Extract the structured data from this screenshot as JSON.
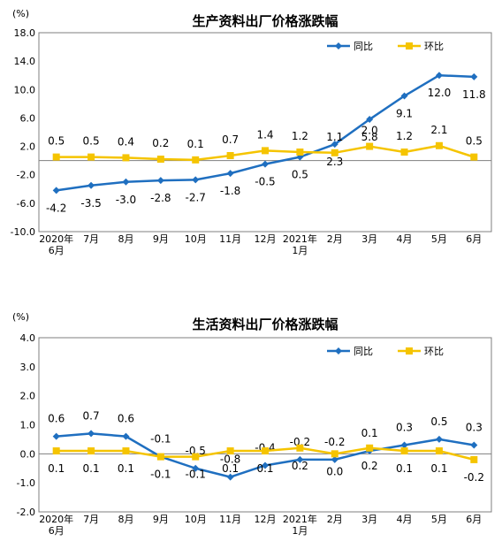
{
  "colors": {
    "yoy": "#1F6FC0",
    "mom": "#F5C400",
    "frame": "#7F7F7F",
    "grid": "#BFBFBF"
  },
  "chart_data": [
    {
      "type": "line",
      "title": "生产资料出厂价格涨跌幅",
      "unit_label": "(%)",
      "ylim": [
        -10.0,
        18.0
      ],
      "yticks": [
        "18.0",
        "14.0",
        "10.0",
        "6.0",
        "2.0",
        "-2.0",
        "-6.0",
        "-10.0"
      ],
      "categories": [
        [
          "2020年",
          "6月"
        ],
        [
          "7月"
        ],
        [
          "8月"
        ],
        [
          "9月"
        ],
        [
          "10月"
        ],
        [
          "11月"
        ],
        [
          "12月"
        ],
        [
          "2021年",
          "1月"
        ],
        [
          "2月"
        ],
        [
          "3月"
        ],
        [
          "4月"
        ],
        [
          "5月"
        ],
        [
          "6月"
        ]
      ],
      "legend_position": "top-right",
      "series": [
        {
          "name": "同比",
          "color": "#1F6FC0",
          "marker": "diamond",
          "values": [
            -4.2,
            -3.5,
            -3.0,
            -2.8,
            -2.7,
            -1.8,
            -0.5,
            0.5,
            2.3,
            5.8,
            9.1,
            12.0,
            11.8
          ],
          "labels": [
            "-4.2",
            "-3.5",
            "-3.0",
            "-2.8",
            "-2.7",
            "-1.8",
            "-0.5",
            "0.5",
            "2.3",
            "5.8",
            "9.1",
            "12.0",
            "11.8"
          ]
        },
        {
          "name": "环比",
          "color": "#F5C400",
          "marker": "square",
          "values": [
            0.5,
            0.5,
            0.4,
            0.2,
            0.1,
            0.7,
            1.4,
            1.2,
            1.1,
            2.0,
            1.2,
            2.1,
            0.5
          ],
          "labels": [
            "0.5",
            "0.5",
            "0.4",
            "0.2",
            "0.1",
            "0.7",
            "1.4",
            "1.2",
            "1.1",
            "2.0",
            "1.2",
            "2.1",
            "0.5"
          ]
        }
      ]
    },
    {
      "type": "line",
      "title": "生活资料出厂价格涨跌幅",
      "unit_label": "(%)",
      "ylim": [
        -2.0,
        4.0
      ],
      "yticks": [
        "4.0",
        "3.0",
        "2.0",
        "1.0",
        "0.0",
        "-1.0",
        "-2.0"
      ],
      "categories": [
        [
          "2020年",
          "6月"
        ],
        [
          "7月"
        ],
        [
          "8月"
        ],
        [
          "9月"
        ],
        [
          "10月"
        ],
        [
          "11月"
        ],
        [
          "12月"
        ],
        [
          "2021年",
          "1月"
        ],
        [
          "2月"
        ],
        [
          "3月"
        ],
        [
          "4月"
        ],
        [
          "5月"
        ],
        [
          "6月"
        ]
      ],
      "legend_position": "top-right",
      "series": [
        {
          "name": "同比",
          "color": "#1F6FC0",
          "marker": "diamond",
          "values": [
            0.6,
            0.7,
            0.6,
            -0.1,
            -0.5,
            -0.8,
            -0.4,
            -0.2,
            -0.2,
            0.1,
            0.3,
            0.5,
            0.3
          ],
          "labels": [
            "0.6",
            "0.7",
            "0.6",
            "-0.1",
            "-0.5",
            "-0.8",
            "-0.4",
            "-0.2",
            "-0.2",
            "0.1",
            "0.3",
            "0.5",
            "0.3"
          ]
        },
        {
          "name": "环比",
          "color": "#F5C400",
          "marker": "square",
          "values": [
            0.1,
            0.1,
            0.1,
            -0.1,
            -0.1,
            0.1,
            0.1,
            0.2,
            0.0,
            0.2,
            0.1,
            0.1,
            -0.2
          ],
          "labels": [
            "0.1",
            "0.1",
            "0.1",
            "-0.1",
            "-0.1",
            "0.1",
            "0.1",
            "0.2",
            "0.0",
            "0.2",
            "0.1",
            "0.1",
            "-0.2"
          ]
        }
      ]
    }
  ]
}
